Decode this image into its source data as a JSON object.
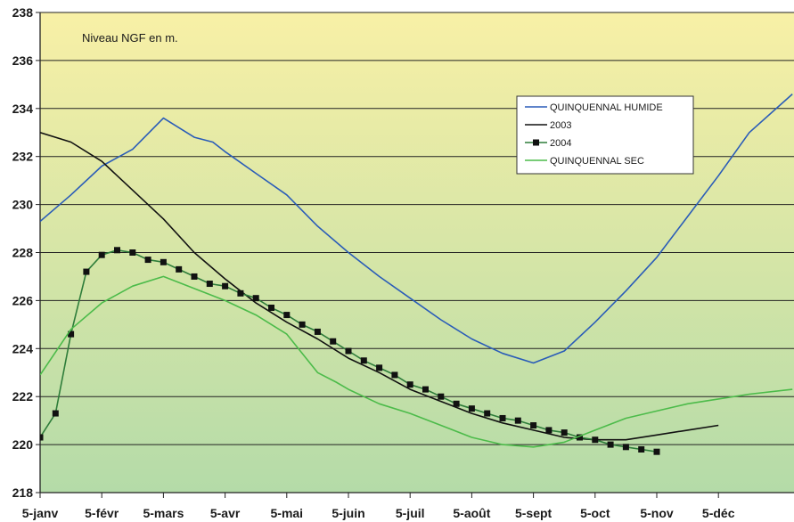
{
  "chart_data": {
    "type": "line",
    "title": "",
    "unit_label": "Niveau NGF en m.",
    "xlabel": "",
    "ylabel": "",
    "ylim": [
      218,
      238
    ],
    "y_ticks": [
      218,
      220,
      222,
      224,
      226,
      228,
      230,
      232,
      234,
      236,
      238
    ],
    "x_ticks": [
      "5-janv",
      "5-févr",
      "5-mars",
      "5-avr",
      "5-mai",
      "5-juin",
      "5-juil",
      "5-août",
      "5-sept",
      "5-oct",
      "5-nov",
      "5-déc"
    ],
    "grid": "horizontal",
    "legend_position": "top-right",
    "colors": {
      "background_top": "#f8f0a6",
      "background_bottom": "#b4dba8",
      "gridline": "#222222"
    },
    "series": [
      {
        "name": "QUINQUENNAL HUMIDE",
        "color": "#2a5cb8",
        "marker": "none",
        "x": [
          0,
          0.5,
          1,
          1.5,
          2,
          2.5,
          2.8,
          3,
          3.5,
          4,
          4.5,
          5,
          5.5,
          6,
          6.5,
          7,
          7.5,
          8,
          8.5,
          9,
          9.5,
          10,
          10.5,
          11,
          11.5,
          12.2
        ],
        "y": [
          229.3,
          230.4,
          231.6,
          232.3,
          233.6,
          232.8,
          232.6,
          232.2,
          231.3,
          230.4,
          229.1,
          228.0,
          227.0,
          226.1,
          225.2,
          224.4,
          223.8,
          223.4,
          223.9,
          225.1,
          226.4,
          227.8,
          229.5,
          231.2,
          233.0,
          234.6
        ]
      },
      {
        "name": "2003",
        "color": "#111111",
        "marker": "none",
        "x": [
          0,
          0.5,
          1,
          1.5,
          2,
          2.5,
          3,
          3.5,
          4,
          4.5,
          5,
          5.5,
          6,
          6.5,
          7,
          7.5,
          8,
          8.5,
          9,
          9.5,
          10,
          10.5,
          11
        ],
        "y": [
          233.0,
          232.6,
          231.8,
          230.6,
          229.4,
          228.0,
          226.9,
          225.9,
          225.1,
          224.4,
          223.6,
          223.0,
          222.3,
          221.8,
          221.3,
          220.9,
          220.6,
          220.3,
          220.2,
          220.2,
          220.4,
          220.6,
          220.8
        ]
      },
      {
        "name": "2004",
        "color": "#2e7d3a",
        "marker": "square",
        "x": [
          0,
          0.25,
          0.5,
          0.75,
          1,
          1.25,
          1.5,
          1.75,
          2,
          2.25,
          2.5,
          2.75,
          3,
          3.25,
          3.5,
          3.75,
          4,
          4.25,
          4.5,
          4.75,
          5,
          5.25,
          5.5,
          5.75,
          6,
          6.25,
          6.5,
          6.75,
          7,
          7.25,
          7.5,
          7.75,
          8,
          8.25,
          8.5,
          8.75,
          9,
          9.25,
          9.5,
          9.75,
          10
        ],
        "y": [
          220.3,
          221.3,
          224.6,
          227.2,
          227.9,
          228.1,
          228.0,
          227.7,
          227.6,
          227.3,
          227.0,
          226.7,
          226.6,
          226.3,
          226.1,
          225.7,
          225.4,
          225.0,
          224.7,
          224.3,
          223.9,
          223.5,
          223.2,
          222.9,
          222.5,
          222.3,
          222.0,
          221.7,
          221.5,
          221.3,
          221.1,
          221.0,
          220.8,
          220.6,
          220.5,
          220.3,
          220.2,
          220.0,
          219.9,
          219.8,
          219.7
        ]
      },
      {
        "name": "QUINQUENNAL SEC",
        "color": "#4cbb4a",
        "marker": "none",
        "x": [
          0,
          0.5,
          1,
          1.5,
          2,
          2.5,
          3,
          3.5,
          4,
          4.5,
          4.8,
          5,
          5.5,
          6,
          6.5,
          7,
          7.5,
          8,
          8.5,
          9,
          9.5,
          10,
          10.5,
          11,
          11.5,
          12.2
        ],
        "y": [
          222.9,
          224.8,
          225.9,
          226.6,
          227.0,
          226.5,
          226.0,
          225.4,
          224.6,
          223.0,
          222.6,
          222.3,
          221.7,
          221.3,
          220.8,
          220.3,
          220.0,
          219.9,
          220.1,
          220.6,
          221.1,
          221.4,
          221.7,
          221.9,
          222.1,
          222.3
        ]
      }
    ]
  }
}
